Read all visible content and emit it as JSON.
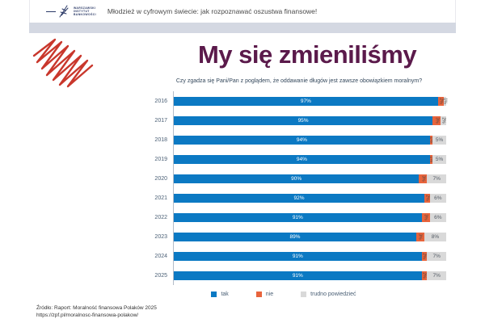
{
  "header": {
    "logo_name": "warszawski-instytut-bankowosci",
    "logo_lines": [
      "WARSZAWSKI",
      "INSTYTUT",
      "BANKOWOŚCI"
    ],
    "title": "Młodzież w cyfrowym świecie: jak rozpoznawać oszustwa finansowe!"
  },
  "slide": {
    "title": "My się zmieniliśmy",
    "subtitle": "Czy zgadza się Pani/Pan z poglądem, że oddawanie długów jest zawsze obowiązkiem moralnym?"
  },
  "chart_data": {
    "type": "bar",
    "orientation": "horizontal",
    "stacked": true,
    "grid": false,
    "legend_position": "bottom",
    "xlim": [
      0,
      100
    ],
    "categories": [
      "2016",
      "2017",
      "2018",
      "2019",
      "2020",
      "2021",
      "2022",
      "2023",
      "2024",
      "2025"
    ],
    "series": [
      {
        "name": "tak",
        "color": "#0b79c3",
        "values": [
          97,
          95,
          94,
          94,
          90,
          92,
          91,
          89,
          91,
          91
        ]
      },
      {
        "name": "nie",
        "color": "#e8643c",
        "values": [
          2,
          3,
          1,
          1,
          3,
          2,
          3,
          3,
          2,
          2
        ]
      },
      {
        "name": "trudno powiedzieć",
        "color": "#d9d9d9",
        "values": [
          1,
          2,
          5,
          5,
          7,
          6,
          6,
          8,
          7,
          7
        ]
      }
    ]
  },
  "colors": {
    "accent_title": "#5b1a4b",
    "scribble_red": "#c9372c",
    "band_gray": "#d4d8e2"
  },
  "footer": {
    "line1": "Źródło: Raport: Moralność finansowa Polaków 2025",
    "line2": "https://zpf.pl/moralnosc-finansowa-polakow/"
  }
}
